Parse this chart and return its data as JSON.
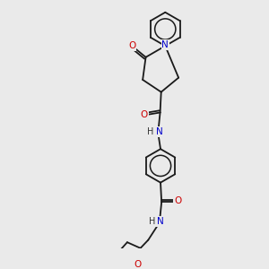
{
  "bg_color": "#eaeaea",
  "bond_color": "#1a1a1a",
  "N_color": "#0000cc",
  "O_color": "#cc0000",
  "lw": 1.3,
  "fontsize": 7.5,
  "xlim": [
    0,
    10
  ],
  "ylim": [
    0,
    12
  ],
  "figsize": [
    3.0,
    3.0
  ],
  "dpi": 100
}
